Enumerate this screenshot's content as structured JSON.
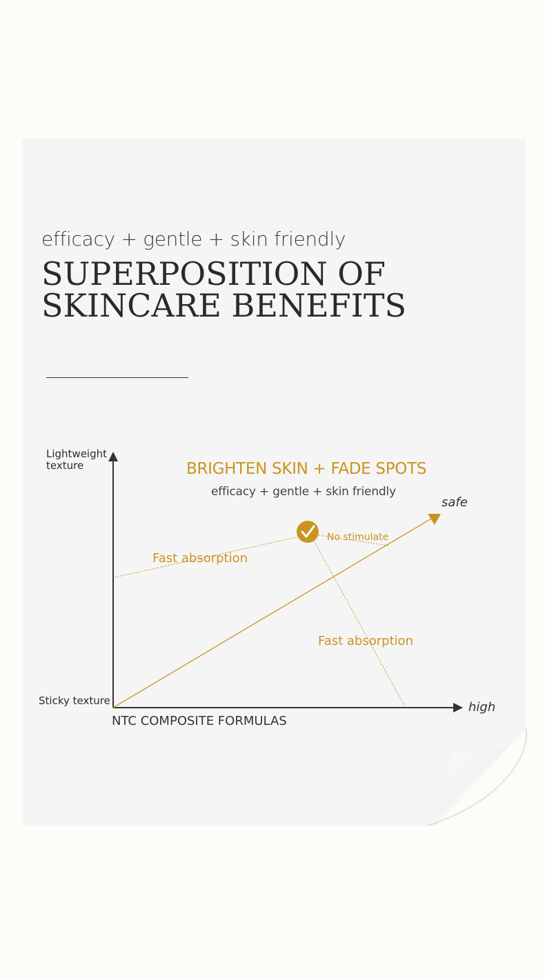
{
  "header": {
    "subtitle": "efficacy + gentle + skin friendly",
    "title_line1": "SUPERPOSITION OF",
    "title_line2": "SKINCARE BENEFITS"
  },
  "diagram": {
    "y_axis_top_label": "Lightweight texture",
    "y_axis_bottom_label": "Sticky texture",
    "x_axis_label": "NTC COMPOSITE FORMULAS",
    "x_axis_end_label": "high",
    "diagonal_end_label": "safe",
    "headline": "BRIGHTEN SKIN + FADE SPOTS",
    "headline_sub": "efficacy + gentle + skin friendly",
    "annotation_left": "Fast absorption",
    "annotation_point": "No stimulate",
    "annotation_lower": "Fast absorption",
    "check_icon": "check-circle-icon"
  },
  "colors": {
    "accent": "#c9951f",
    "card": "#f5f5f5",
    "background": "#fefcf7",
    "axis": "#333333"
  }
}
